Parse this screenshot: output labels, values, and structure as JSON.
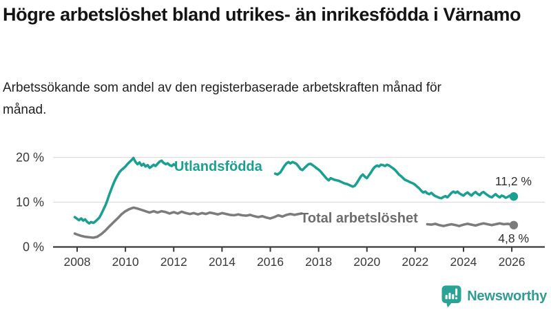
{
  "header": {
    "title": "Högre arbetslöshet bland utrikes- än inrikesfödda i Värnamo",
    "subtitle": "Arbetssökande som andel av den registerbaserade arbetskraften månad för månad."
  },
  "footer": {
    "brand": "Newsworthy"
  },
  "colors": {
    "accent_teal": "#1aa091",
    "gray_series": "#7c7c7c",
    "brand": "#2f9c92",
    "grid": "#dcdcdc",
    "axis": "#3a3a3a"
  },
  "chart_data": {
    "type": "line",
    "unit": "%",
    "grid": true,
    "legend_position": "inline-labels",
    "x_axis": {
      "ticks": [
        2008,
        2010,
        2012,
        2014,
        2016,
        2018,
        2020,
        2022,
        2024,
        2026
      ],
      "range": [
        2006.95,
        2027.35
      ]
    },
    "y_axis": {
      "ticks": [
        {
          "value": 0,
          "label": "0 %"
        },
        {
          "value": 10,
          "label": "10 %"
        },
        {
          "value": 20,
          "label": "20 %"
        }
      ],
      "range": [
        0,
        21.5
      ]
    },
    "series": [
      {
        "name": "Utlandsfödda",
        "color": "#1aa091",
        "end_label": "11,2 %",
        "end_value": 11.2,
        "segments": [
          [
            [
              2007.9,
              6.6
            ],
            [
              2008.0,
              6.2
            ],
            [
              2008.08,
              5.9
            ],
            [
              2008.17,
              6.3
            ],
            [
              2008.25,
              5.8
            ],
            [
              2008.33,
              6.1
            ],
            [
              2008.42,
              5.5
            ],
            [
              2008.5,
              5.2
            ],
            [
              2008.58,
              5.5
            ],
            [
              2008.67,
              5.3
            ],
            [
              2008.75,
              5.6
            ],
            [
              2008.83,
              6.0
            ],
            [
              2008.92,
              6.5
            ],
            [
              2009.0,
              7.3
            ],
            [
              2009.08,
              8.2
            ],
            [
              2009.17,
              9.2
            ],
            [
              2009.25,
              10.3
            ],
            [
              2009.33,
              11.6
            ],
            [
              2009.42,
              12.9
            ],
            [
              2009.5,
              14.0
            ],
            [
              2009.58,
              15.0
            ],
            [
              2009.67,
              15.9
            ],
            [
              2009.75,
              16.6
            ],
            [
              2009.83,
              17.1
            ],
            [
              2009.92,
              17.5
            ],
            [
              2010.0,
              17.9
            ],
            [
              2010.08,
              18.4
            ],
            [
              2010.17,
              18.9
            ],
            [
              2010.25,
              19.3
            ],
            [
              2010.33,
              19.8
            ],
            [
              2010.42,
              18.9
            ],
            [
              2010.5,
              18.4
            ],
            [
              2010.58,
              18.8
            ],
            [
              2010.67,
              18.1
            ],
            [
              2010.75,
              18.5
            ],
            [
              2010.83,
              17.9
            ],
            [
              2010.92,
              18.2
            ],
            [
              2011.0,
              17.6
            ],
            [
              2011.08,
              17.9
            ],
            [
              2011.17,
              18.3
            ],
            [
              2011.25,
              18.0
            ],
            [
              2011.33,
              18.5
            ],
            [
              2011.42,
              19.0
            ],
            [
              2011.5,
              19.2
            ],
            [
              2011.58,
              18.7
            ],
            [
              2011.67,
              18.4
            ],
            [
              2011.75,
              18.6
            ],
            [
              2011.83,
              18.2
            ],
            [
              2011.92,
              18.0
            ],
            [
              2012.0,
              18.4
            ],
            [
              2012.08,
              18.1
            ]
          ],
          [
            [
              2016.2,
              16.3
            ],
            [
              2016.3,
              16.1
            ],
            [
              2016.42,
              16.6
            ],
            [
              2016.5,
              17.3
            ],
            [
              2016.58,
              18.0
            ],
            [
              2016.67,
              18.6
            ],
            [
              2016.75,
              18.9
            ],
            [
              2016.83,
              18.6
            ],
            [
              2016.92,
              18.9
            ],
            [
              2017.0,
              18.7
            ],
            [
              2017.08,
              18.5
            ],
            [
              2017.17,
              17.9
            ],
            [
              2017.25,
              17.3
            ],
            [
              2017.33,
              17.1
            ],
            [
              2017.42,
              17.6
            ],
            [
              2017.5,
              18.0
            ],
            [
              2017.58,
              18.4
            ],
            [
              2017.67,
              18.5
            ],
            [
              2017.75,
              18.2
            ],
            [
              2017.83,
              17.9
            ],
            [
              2017.92,
              17.5
            ],
            [
              2018.0,
              17.2
            ],
            [
              2018.08,
              16.8
            ],
            [
              2018.17,
              16.2
            ],
            [
              2018.25,
              15.7
            ],
            [
              2018.33,
              15.2
            ],
            [
              2018.42,
              14.8
            ],
            [
              2018.5,
              15.3
            ],
            [
              2018.58,
              15.1
            ],
            [
              2018.67,
              14.9
            ],
            [
              2018.75,
              14.8
            ],
            [
              2018.83,
              14.7
            ],
            [
              2018.92,
              14.5
            ],
            [
              2019.0,
              14.3
            ],
            [
              2019.08,
              14.1
            ],
            [
              2019.17,
              14.0
            ],
            [
              2019.25,
              13.8
            ],
            [
              2019.33,
              13.6
            ],
            [
              2019.42,
              13.4
            ],
            [
              2019.5,
              13.6
            ],
            [
              2019.58,
              14.2
            ],
            [
              2019.67,
              15.0
            ],
            [
              2019.75,
              15.7
            ],
            [
              2019.83,
              16.1
            ],
            [
              2019.92,
              15.6
            ],
            [
              2020.0,
              15.3
            ],
            [
              2020.08,
              15.9
            ],
            [
              2020.17,
              16.6
            ],
            [
              2020.25,
              17.3
            ],
            [
              2020.33,
              17.8
            ],
            [
              2020.42,
              18.1
            ],
            [
              2020.5,
              17.9
            ],
            [
              2020.58,
              18.3
            ],
            [
              2020.67,
              18.2
            ],
            [
              2020.75,
              18.0
            ],
            [
              2020.83,
              18.3
            ],
            [
              2020.92,
              18.1
            ],
            [
              2021.0,
              17.8
            ],
            [
              2021.08,
              17.5
            ],
            [
              2021.17,
              17.1
            ],
            [
              2021.25,
              16.6
            ],
            [
              2021.33,
              16.1
            ],
            [
              2021.42,
              15.7
            ],
            [
              2021.5,
              15.3
            ],
            [
              2021.58,
              14.9
            ],
            [
              2021.67,
              14.7
            ],
            [
              2021.75,
              14.5
            ],
            [
              2021.83,
              14.3
            ],
            [
              2021.92,
              14.1
            ],
            [
              2022.0,
              13.8
            ],
            [
              2022.08,
              13.4
            ],
            [
              2022.17,
              13.0
            ],
            [
              2022.25,
              12.5
            ],
            [
              2022.33,
              12.1
            ],
            [
              2022.42,
              12.3
            ],
            [
              2022.5,
              11.9
            ],
            [
              2022.58,
              11.7
            ],
            [
              2022.67,
              12.0
            ],
            [
              2022.75,
              11.6
            ],
            [
              2022.83,
              11.3
            ],
            [
              2022.92,
              11.1
            ],
            [
              2023.0,
              10.9
            ],
            [
              2023.08,
              10.8
            ],
            [
              2023.17,
              11.1
            ],
            [
              2023.25,
              11.3
            ],
            [
              2023.33,
              11.0
            ],
            [
              2023.42,
              11.5
            ],
            [
              2023.5,
              12.0
            ],
            [
              2023.58,
              12.3
            ],
            [
              2023.67,
              12.0
            ],
            [
              2023.75,
              12.3
            ],
            [
              2023.83,
              11.9
            ],
            [
              2023.92,
              11.6
            ],
            [
              2024.0,
              11.4
            ],
            [
              2024.08,
              11.8
            ],
            [
              2024.17,
              12.1
            ],
            [
              2024.25,
              11.7
            ],
            [
              2024.33,
              11.4
            ],
            [
              2024.42,
              11.9
            ],
            [
              2024.5,
              12.2
            ],
            [
              2024.58,
              11.8
            ],
            [
              2024.67,
              11.5
            ],
            [
              2024.75,
              12.0
            ],
            [
              2024.83,
              12.2
            ],
            [
              2024.92,
              11.8
            ],
            [
              2025.0,
              11.5
            ],
            [
              2025.08,
              11.2
            ],
            [
              2025.17,
              11.0
            ],
            [
              2025.25,
              11.4
            ],
            [
              2025.33,
              11.7
            ],
            [
              2025.42,
              11.3
            ],
            [
              2025.5,
              11.0
            ],
            [
              2025.58,
              11.4
            ],
            [
              2025.67,
              11.2
            ],
            [
              2025.75,
              10.9
            ],
            [
              2025.83,
              11.1
            ],
            [
              2025.92,
              11.4
            ],
            [
              2026.0,
              11.1
            ],
            [
              2026.08,
              11.2
            ]
          ]
        ]
      },
      {
        "name": "Total arbetslöshet",
        "color": "#7c7c7c",
        "end_label": "4,8 %",
        "end_value": 4.8,
        "segments": [
          [
            [
              2007.9,
              2.9
            ],
            [
              2008.0,
              2.7
            ],
            [
              2008.17,
              2.4
            ],
            [
              2008.33,
              2.2
            ],
            [
              2008.5,
              2.1
            ],
            [
              2008.67,
              2.0
            ],
            [
              2008.83,
              2.2
            ],
            [
              2009.0,
              2.8
            ],
            [
              2009.17,
              3.6
            ],
            [
              2009.33,
              4.5
            ],
            [
              2009.5,
              5.4
            ],
            [
              2009.67,
              6.3
            ],
            [
              2009.83,
              7.2
            ],
            [
              2010.0,
              7.9
            ],
            [
              2010.17,
              8.4
            ],
            [
              2010.33,
              8.7
            ],
            [
              2010.5,
              8.5
            ],
            [
              2010.67,
              8.2
            ],
            [
              2010.83,
              7.9
            ],
            [
              2011.0,
              7.6
            ],
            [
              2011.17,
              7.9
            ],
            [
              2011.33,
              7.6
            ],
            [
              2011.5,
              7.9
            ],
            [
              2011.67,
              7.7
            ],
            [
              2011.83,
              7.4
            ],
            [
              2012.0,
              7.7
            ],
            [
              2012.17,
              7.4
            ],
            [
              2012.33,
              7.8
            ],
            [
              2012.5,
              7.5
            ],
            [
              2012.67,
              7.3
            ],
            [
              2012.83,
              7.5
            ],
            [
              2013.0,
              7.2
            ],
            [
              2013.17,
              7.5
            ],
            [
              2013.33,
              7.3
            ],
            [
              2013.5,
              7.6
            ],
            [
              2013.67,
              7.4
            ],
            [
              2013.83,
              7.2
            ],
            [
              2014.0,
              7.5
            ],
            [
              2014.17,
              7.3
            ],
            [
              2014.33,
              7.1
            ],
            [
              2014.5,
              7.0
            ],
            [
              2014.67,
              7.2
            ],
            [
              2014.83,
              7.0
            ],
            [
              2015.0,
              6.9
            ],
            [
              2015.17,
              7.1
            ],
            [
              2015.33,
              6.8
            ],
            [
              2015.5,
              6.6
            ],
            [
              2015.67,
              6.8
            ],
            [
              2015.83,
              6.5
            ],
            [
              2016.0,
              6.3
            ],
            [
              2016.17,
              6.6
            ],
            [
              2016.33,
              7.0
            ],
            [
              2016.5,
              6.7
            ],
            [
              2016.67,
              7.1
            ],
            [
              2016.83,
              7.3
            ],
            [
              2017.0,
              7.1
            ],
            [
              2017.17,
              7.3
            ],
            [
              2017.3,
              7.4
            ]
          ],
          [
            [
              2022.5,
              5.0
            ],
            [
              2022.67,
              4.9
            ],
            [
              2022.83,
              5.1
            ],
            [
              2023.0,
              4.8
            ],
            [
              2023.17,
              4.6
            ],
            [
              2023.33,
              4.8
            ],
            [
              2023.5,
              5.0
            ],
            [
              2023.67,
              4.8
            ],
            [
              2023.83,
              4.6
            ],
            [
              2024.0,
              4.9
            ],
            [
              2024.17,
              5.1
            ],
            [
              2024.33,
              4.9
            ],
            [
              2024.5,
              4.7
            ],
            [
              2024.67,
              5.0
            ],
            [
              2024.83,
              5.2
            ],
            [
              2025.0,
              5.0
            ],
            [
              2025.17,
              4.8
            ],
            [
              2025.33,
              5.0
            ],
            [
              2025.5,
              5.2
            ],
            [
              2025.67,
              5.0
            ],
            [
              2025.83,
              5.1
            ],
            [
              2026.0,
              4.9
            ],
            [
              2026.08,
              4.8
            ]
          ]
        ]
      }
    ]
  }
}
